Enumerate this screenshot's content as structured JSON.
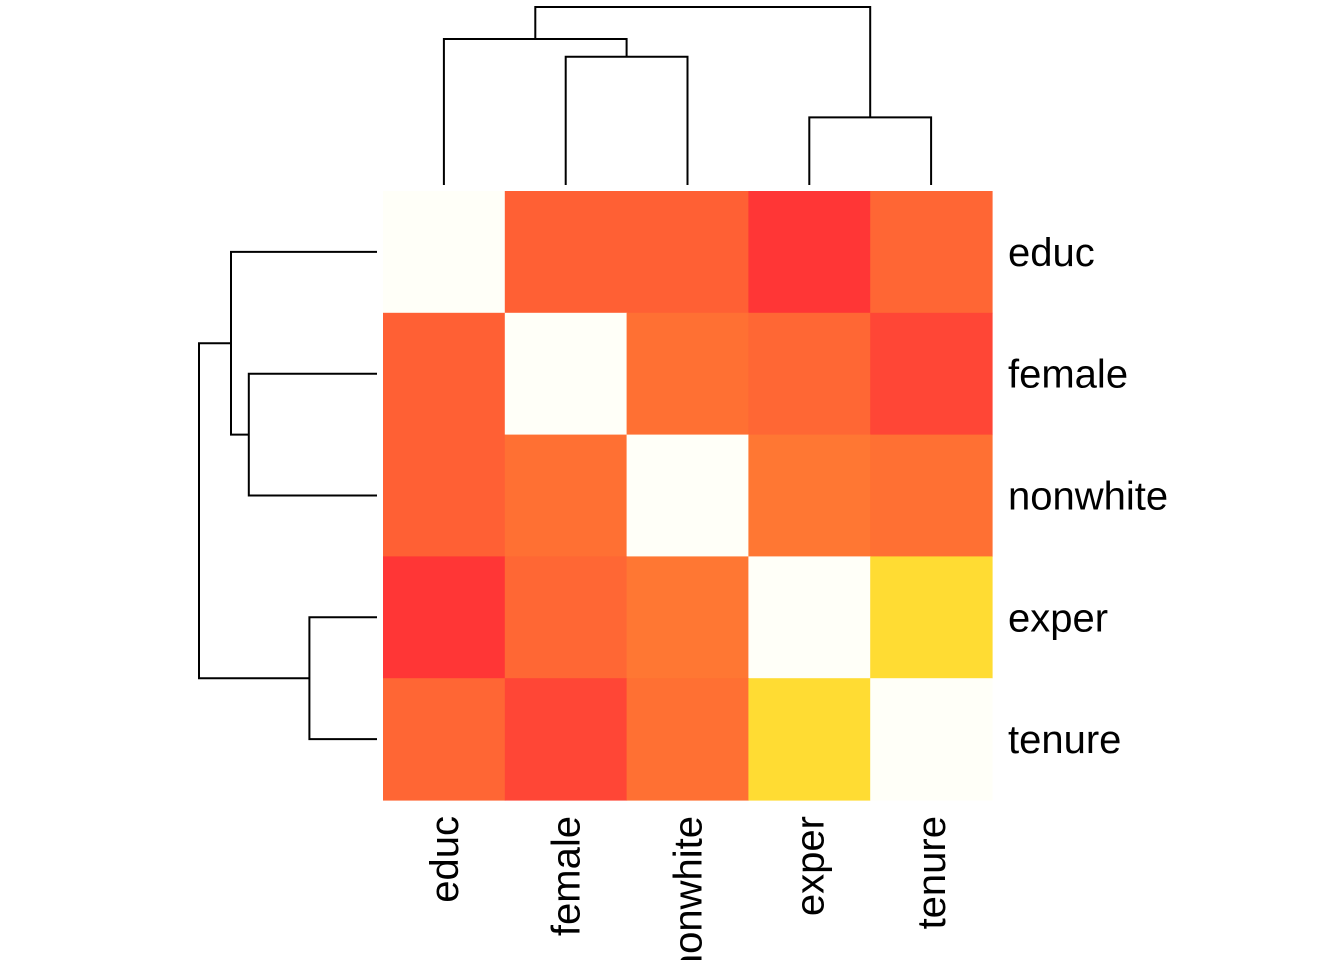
{
  "chart_data": {
    "type": "heatmap",
    "rows": [
      "educ",
      "female",
      "nonwhite",
      "exper",
      "tenure"
    ],
    "columns": [
      "educ",
      "female",
      "nonwhite",
      "exper",
      "tenure"
    ],
    "cell_colors": [
      [
        "#FFFFF8",
        "#FF6034",
        "#FF6034",
        "#FF3636",
        "#FF6634"
      ],
      [
        "#FF6034",
        "#FFFFF8",
        "#FF7033",
        "#FF6734",
        "#FF4636"
      ],
      [
        "#FF6034",
        "#FF7033",
        "#FFFFF8",
        "#FF7733",
        "#FF7033"
      ],
      [
        "#FF3636",
        "#FF6734",
        "#FF7733",
        "#FFFFF8",
        "#FFDC33"
      ],
      [
        "#FF6634",
        "#FF4636",
        "#FF7033",
        "#FFDC33",
        "#FFFFF8"
      ]
    ],
    "values": [
      [
        1.0,
        0.5,
        0.5,
        0.15,
        0.55
      ],
      [
        0.5,
        1.0,
        0.62,
        0.55,
        0.3
      ],
      [
        0.5,
        0.62,
        1.0,
        0.68,
        0.62
      ],
      [
        0.15,
        0.55,
        0.68,
        1.0,
        0.88
      ],
      [
        0.55,
        0.3,
        0.62,
        0.88,
        1.0
      ]
    ],
    "color_scale": "heat (red = low, yellow/white = high)",
    "dendrogram": {
      "order": [
        "educ",
        "female",
        "nonwhite",
        "exper",
        "tenure"
      ],
      "merges": [
        {
          "left": "female",
          "right": "nonwhite",
          "height": 0.72
        },
        {
          "left": "exper",
          "right": "tenure",
          "height": 0.38
        },
        {
          "left": "educ",
          "right": "female+nonwhite",
          "height": 0.82
        },
        {
          "left": "educ+female+nonwhite",
          "right": "exper+tenure",
          "height": 1.0
        }
      ]
    },
    "legend": "none"
  }
}
